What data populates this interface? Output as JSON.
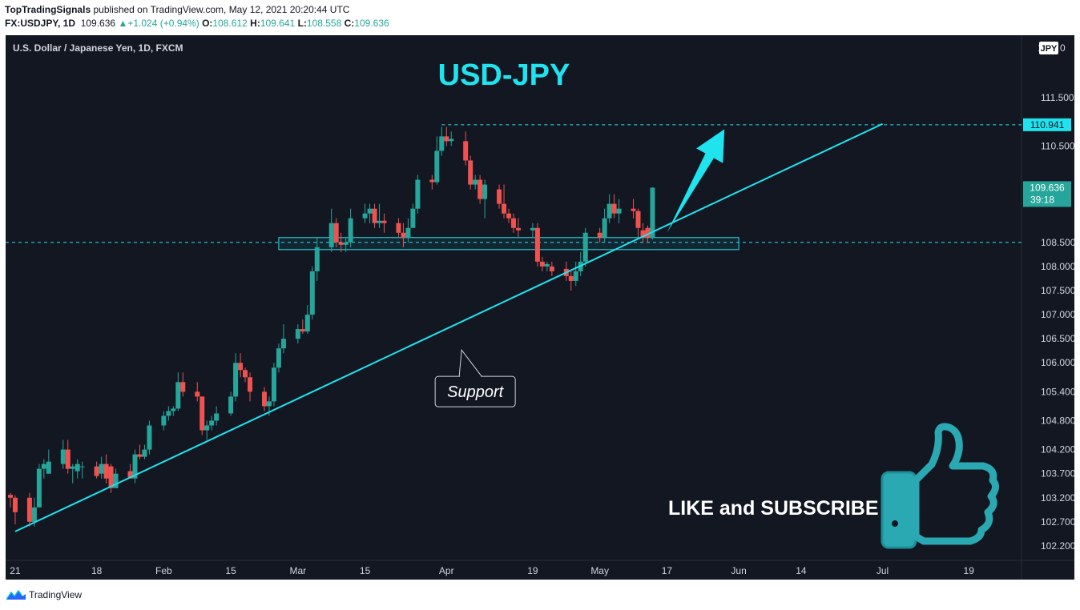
{
  "header": {
    "author": "TopTradingSignals",
    "published_text": "published on TradingView.com, May 12, 2021 20:20:44 UTC"
  },
  "ohlc": {
    "symbol": "FX:USDJPY, 1D",
    "price": "109.636",
    "change": "+1.024 (+0.94%)",
    "o_label": "O:",
    "o": "108.612",
    "h_label": "H:",
    "h": "109.641",
    "l_label": "L:",
    "l": "108.558",
    "c_label": "C:",
    "c": "109.636"
  },
  "footer": {
    "brand": "TradingView"
  },
  "colors": {
    "background": "#131722",
    "up": "#26a69a",
    "down": "#ef5350",
    "cyan": "#1fe3ef",
    "axis_text": "#d1d4dc"
  },
  "chart_data": {
    "type": "candlestick",
    "title": "USD-JPY",
    "instrument": "U.S. Dollar / Japanese Yen, 1D, FXCM",
    "currency_badge": "JPY",
    "y_top_label": "1",
    "y_top_label2": "0",
    "ylim": [
      101.9,
      112.8
    ],
    "y_ticks": [
      {
        "value": 111.5,
        "label": "111.500"
      },
      {
        "value": 110.5,
        "label": "110.500"
      },
      {
        "value": 108.5,
        "label": "108.500"
      },
      {
        "value": 108.0,
        "label": "108.000"
      },
      {
        "value": 107.5,
        "label": "107.500"
      },
      {
        "value": 107.0,
        "label": "107.000"
      },
      {
        "value": 106.5,
        "label": "106.500"
      },
      {
        "value": 106.0,
        "label": "106.000"
      },
      {
        "value": 105.4,
        "label": "105.400"
      },
      {
        "value": 104.8,
        "label": "104.800"
      },
      {
        "value": 104.2,
        "label": "104.200"
      },
      {
        "value": 103.7,
        "label": "103.700"
      },
      {
        "value": 103.2,
        "label": "103.200"
      },
      {
        "value": 102.7,
        "label": "102.700"
      },
      {
        "value": 102.2,
        "label": "102.200"
      }
    ],
    "x_ticks": [
      {
        "date": "2021-01-01",
        "label": "21"
      },
      {
        "date": "2021-01-18",
        "label": "18"
      },
      {
        "date": "2021-02-01",
        "label": "Feb"
      },
      {
        "date": "2021-02-15",
        "label": "15"
      },
      {
        "date": "2021-03-01",
        "label": "Mar"
      },
      {
        "date": "2021-03-15",
        "label": "15"
      },
      {
        "date": "2021-04-01",
        "label": "Apr"
      },
      {
        "date": "2021-04-19",
        "label": "19"
      },
      {
        "date": "2021-05-03",
        "label": "May"
      },
      {
        "date": "2021-05-17",
        "label": "17"
      },
      {
        "date": "2021-06-01",
        "label": "Jun"
      },
      {
        "date": "2021-06-14",
        "label": "14"
      },
      {
        "date": "2021-07-01",
        "label": "Jul"
      },
      {
        "date": "2021-07-19",
        "label": "19"
      }
    ],
    "xlim": [
      "2020-12-30",
      "2021-07-30"
    ],
    "candles": [
      {
        "d": "2020-12-31",
        "o": 103.26,
        "h": 103.3,
        "l": 103.0,
        "c": 103.2
      },
      {
        "d": "2021-01-01",
        "o": 103.2,
        "h": 103.25,
        "l": 102.65,
        "c": 102.9
      },
      {
        "d": "2021-01-04",
        "o": 103.2,
        "h": 103.3,
        "l": 102.6,
        "c": 102.7
      },
      {
        "d": "2021-01-05",
        "o": 102.7,
        "h": 103.2,
        "l": 102.6,
        "c": 103.0
      },
      {
        "d": "2021-01-06",
        "o": 103.0,
        "h": 103.9,
        "l": 103.0,
        "c": 103.8
      },
      {
        "d": "2021-01-07",
        "o": 103.8,
        "h": 104.0,
        "l": 103.6,
        "c": 103.9
      },
      {
        "d": "2021-01-08",
        "o": 103.7,
        "h": 104.2,
        "l": 103.7,
        "c": 103.95
      },
      {
        "d": "2021-01-11",
        "o": 103.9,
        "h": 104.4,
        "l": 103.8,
        "c": 104.2
      },
      {
        "d": "2021-01-12",
        "o": 104.2,
        "h": 104.4,
        "l": 103.7,
        "c": 103.8
      },
      {
        "d": "2021-01-13",
        "o": 103.8,
        "h": 103.9,
        "l": 103.5,
        "c": 103.85
      },
      {
        "d": "2021-01-14",
        "o": 103.75,
        "h": 104.0,
        "l": 103.6,
        "c": 103.9
      },
      {
        "d": "2021-01-15",
        "o": 103.85,
        "h": 103.95,
        "l": 103.6,
        "c": 103.85
      },
      {
        "d": "2021-01-18",
        "o": 103.85,
        "h": 103.95,
        "l": 103.6,
        "c": 103.65
      },
      {
        "d": "2021-01-19",
        "o": 103.7,
        "h": 104.05,
        "l": 103.6,
        "c": 103.9
      },
      {
        "d": "2021-01-20",
        "o": 103.9,
        "h": 104.1,
        "l": 103.5,
        "c": 103.6
      },
      {
        "d": "2021-01-21",
        "o": 103.85,
        "h": 103.9,
        "l": 103.3,
        "c": 103.4
      },
      {
        "d": "2021-01-22",
        "o": 103.4,
        "h": 103.8,
        "l": 103.4,
        "c": 103.7
      },
      {
        "d": "2021-01-25",
        "o": 103.75,
        "h": 103.9,
        "l": 103.6,
        "c": 103.6
      },
      {
        "d": "2021-01-26",
        "o": 103.6,
        "h": 104.2,
        "l": 103.5,
        "c": 104.1
      },
      {
        "d": "2021-01-27",
        "o": 104.1,
        "h": 104.3,
        "l": 104.0,
        "c": 104.05
      },
      {
        "d": "2021-01-28",
        "o": 104.05,
        "h": 104.3,
        "l": 104.0,
        "c": 104.2
      },
      {
        "d": "2021-01-29",
        "o": 104.2,
        "h": 104.8,
        "l": 104.1,
        "c": 104.7
      },
      {
        "d": "2021-02-01",
        "o": 104.7,
        "h": 105.0,
        "l": 104.6,
        "c": 104.9
      },
      {
        "d": "2021-02-02",
        "o": 104.9,
        "h": 105.1,
        "l": 104.8,
        "c": 105.0
      },
      {
        "d": "2021-02-03",
        "o": 105.0,
        "h": 105.1,
        "l": 104.9,
        "c": 105.05
      },
      {
        "d": "2021-02-04",
        "o": 105.05,
        "h": 105.8,
        "l": 105.0,
        "c": 105.6
      },
      {
        "d": "2021-02-05",
        "o": 105.6,
        "h": 105.8,
        "l": 105.3,
        "c": 105.4
      },
      {
        "d": "2021-02-08",
        "o": 105.4,
        "h": 105.6,
        "l": 105.2,
        "c": 105.3
      },
      {
        "d": "2021-02-09",
        "o": 105.3,
        "h": 105.3,
        "l": 104.5,
        "c": 104.6
      },
      {
        "d": "2021-02-10",
        "o": 104.6,
        "h": 104.8,
        "l": 104.4,
        "c": 104.7
      },
      {
        "d": "2021-02-11",
        "o": 104.7,
        "h": 104.9,
        "l": 104.6,
        "c": 104.8
      },
      {
        "d": "2021-02-12",
        "o": 104.8,
        "h": 105.1,
        "l": 104.7,
        "c": 104.95
      },
      {
        "d": "2021-02-15",
        "o": 104.95,
        "h": 105.4,
        "l": 104.9,
        "c": 105.3
      },
      {
        "d": "2021-02-16",
        "o": 105.3,
        "h": 106.2,
        "l": 105.2,
        "c": 106.0
      },
      {
        "d": "2021-02-17",
        "o": 106.0,
        "h": 106.2,
        "l": 105.7,
        "c": 105.85
      },
      {
        "d": "2021-02-18",
        "o": 105.85,
        "h": 105.9,
        "l": 105.6,
        "c": 105.7
      },
      {
        "d": "2021-02-19",
        "o": 105.7,
        "h": 105.8,
        "l": 105.2,
        "c": 105.4
      },
      {
        "d": "2021-02-22",
        "o": 105.4,
        "h": 105.5,
        "l": 105.0,
        "c": 105.1
      },
      {
        "d": "2021-02-23",
        "o": 105.1,
        "h": 105.3,
        "l": 104.9,
        "c": 105.2
      },
      {
        "d": "2021-02-24",
        "o": 105.2,
        "h": 106.0,
        "l": 105.1,
        "c": 105.9
      },
      {
        "d": "2021-02-25",
        "o": 105.9,
        "h": 106.4,
        "l": 105.8,
        "c": 106.3
      },
      {
        "d": "2021-02-26",
        "o": 106.3,
        "h": 106.8,
        "l": 106.2,
        "c": 106.5
      },
      {
        "d": "2021-03-01",
        "o": 106.5,
        "h": 106.8,
        "l": 106.4,
        "c": 106.7
      },
      {
        "d": "2021-03-02",
        "o": 106.7,
        "h": 106.9,
        "l": 106.6,
        "c": 106.65
      },
      {
        "d": "2021-03-03",
        "o": 106.65,
        "h": 107.2,
        "l": 106.6,
        "c": 107.0
      },
      {
        "d": "2021-03-04",
        "o": 107.0,
        "h": 108.0,
        "l": 106.9,
        "c": 107.9
      },
      {
        "d": "2021-03-05",
        "o": 107.9,
        "h": 108.6,
        "l": 107.7,
        "c": 108.4
      },
      {
        "d": "2021-03-08",
        "o": 108.4,
        "h": 109.2,
        "l": 108.3,
        "c": 108.9
      },
      {
        "d": "2021-03-09",
        "o": 108.9,
        "h": 109.0,
        "l": 108.4,
        "c": 108.5
      },
      {
        "d": "2021-03-10",
        "o": 108.5,
        "h": 108.7,
        "l": 108.3,
        "c": 108.45
      },
      {
        "d": "2021-03-11",
        "o": 108.45,
        "h": 108.6,
        "l": 108.3,
        "c": 108.5
      },
      {
        "d": "2021-03-12",
        "o": 108.5,
        "h": 109.2,
        "l": 108.4,
        "c": 109.0
      },
      {
        "d": "2021-03-15",
        "o": 109.0,
        "h": 109.3,
        "l": 108.9,
        "c": 109.1
      },
      {
        "d": "2021-03-16",
        "o": 109.1,
        "h": 109.3,
        "l": 108.9,
        "c": 109.2
      },
      {
        "d": "2021-03-17",
        "o": 109.2,
        "h": 109.3,
        "l": 108.8,
        "c": 108.9
      },
      {
        "d": "2021-03-18",
        "o": 108.9,
        "h": 109.3,
        "l": 108.8,
        "c": 108.95
      },
      {
        "d": "2021-03-19",
        "o": 108.95,
        "h": 109.1,
        "l": 108.7,
        "c": 108.9
      },
      {
        "d": "2021-03-22",
        "o": 108.9,
        "h": 109.0,
        "l": 108.6,
        "c": 108.7
      },
      {
        "d": "2021-03-23",
        "o": 108.7,
        "h": 108.9,
        "l": 108.4,
        "c": 108.6
      },
      {
        "d": "2021-03-24",
        "o": 108.6,
        "h": 109.0,
        "l": 108.5,
        "c": 108.8
      },
      {
        "d": "2021-03-25",
        "o": 108.8,
        "h": 109.3,
        "l": 108.8,
        "c": 109.2
      },
      {
        "d": "2021-03-26",
        "o": 109.2,
        "h": 109.9,
        "l": 109.1,
        "c": 109.8
      },
      {
        "d": "2021-03-29",
        "o": 109.8,
        "h": 109.9,
        "l": 109.6,
        "c": 109.75
      },
      {
        "d": "2021-03-30",
        "o": 109.75,
        "h": 110.7,
        "l": 109.7,
        "c": 110.4
      },
      {
        "d": "2021-03-31",
        "o": 110.4,
        "h": 110.9,
        "l": 110.3,
        "c": 110.7
      },
      {
        "d": "2021-04-01",
        "o": 110.7,
        "h": 110.9,
        "l": 110.5,
        "c": 110.6
      },
      {
        "d": "2021-04-02",
        "o": 110.6,
        "h": 110.8,
        "l": 110.5,
        "c": 110.65
      },
      {
        "d": "2021-04-05",
        "o": 110.6,
        "h": 110.8,
        "l": 110.1,
        "c": 110.2
      },
      {
        "d": "2021-04-06",
        "o": 110.2,
        "h": 110.3,
        "l": 109.6,
        "c": 109.7
      },
      {
        "d": "2021-04-07",
        "o": 109.7,
        "h": 109.9,
        "l": 109.6,
        "c": 109.8
      },
      {
        "d": "2021-04-08",
        "o": 109.8,
        "h": 109.9,
        "l": 109.3,
        "c": 109.4
      },
      {
        "d": "2021-04-09",
        "o": 109.4,
        "h": 109.8,
        "l": 109.0,
        "c": 109.7
      },
      {
        "d": "2021-04-12",
        "o": 109.6,
        "h": 109.7,
        "l": 109.2,
        "c": 109.3
      },
      {
        "d": "2021-04-13",
        "o": 109.3,
        "h": 109.7,
        "l": 109.0,
        "c": 109.1
      },
      {
        "d": "2021-04-14",
        "o": 109.1,
        "h": 109.2,
        "l": 108.9,
        "c": 109.0
      },
      {
        "d": "2021-04-15",
        "o": 109.0,
        "h": 109.1,
        "l": 108.7,
        "c": 108.8
      },
      {
        "d": "2021-04-16",
        "o": 108.8,
        "h": 109.0,
        "l": 108.6,
        "c": 108.75
      },
      {
        "d": "2021-04-19",
        "o": 108.75,
        "h": 108.9,
        "l": 108.6,
        "c": 108.8
      },
      {
        "d": "2021-04-20",
        "o": 108.8,
        "h": 108.9,
        "l": 108.0,
        "c": 108.1
      },
      {
        "d": "2021-04-21",
        "o": 108.1,
        "h": 108.2,
        "l": 107.9,
        "c": 108.0
      },
      {
        "d": "2021-04-22",
        "o": 108.0,
        "h": 108.1,
        "l": 107.9,
        "c": 108.05
      },
      {
        "d": "2021-04-23",
        "o": 108.0,
        "h": 108.1,
        "l": 107.8,
        "c": 107.9
      },
      {
        "d": "2021-04-26",
        "o": 107.95,
        "h": 108.1,
        "l": 107.7,
        "c": 107.8
      },
      {
        "d": "2021-04-27",
        "o": 107.8,
        "h": 107.9,
        "l": 107.5,
        "c": 107.7
      },
      {
        "d": "2021-04-28",
        "o": 107.7,
        "h": 108.1,
        "l": 107.6,
        "c": 107.9
      },
      {
        "d": "2021-04-29",
        "o": 107.9,
        "h": 108.3,
        "l": 107.8,
        "c": 108.1
      },
      {
        "d": "2021-04-30",
        "o": 108.1,
        "h": 108.8,
        "l": 108.0,
        "c": 108.7
      },
      {
        "d": "2021-05-03",
        "o": 108.7,
        "h": 108.8,
        "l": 108.5,
        "c": 108.6
      },
      {
        "d": "2021-05-04",
        "o": 108.6,
        "h": 109.2,
        "l": 108.5,
        "c": 109.0
      },
      {
        "d": "2021-05-05",
        "o": 109.0,
        "h": 109.5,
        "l": 108.9,
        "c": 109.3
      },
      {
        "d": "2021-05-06",
        "o": 109.3,
        "h": 109.5,
        "l": 109.0,
        "c": 109.1
      },
      {
        "d": "2021-05-07",
        "o": 109.1,
        "h": 109.4,
        "l": 108.9,
        "c": 109.2
      },
      {
        "d": "2021-05-10",
        "o": 109.2,
        "h": 109.4,
        "l": 109.0,
        "c": 109.15
      },
      {
        "d": "2021-05-11",
        "o": 109.15,
        "h": 109.2,
        "l": 108.6,
        "c": 108.8
      },
      {
        "d": "2021-05-12",
        "o": 108.75,
        "h": 108.9,
        "l": 108.5,
        "c": 108.6
      },
      {
        "d": "2021-05-13",
        "o": 108.8,
        "h": 108.85,
        "l": 108.5,
        "c": 108.6
      },
      {
        "d": "2021-05-14",
        "o": 108.612,
        "h": 109.641,
        "l": 108.558,
        "c": 109.636
      }
    ],
    "resistance_level": {
      "value": 110.941,
      "label": "110.941",
      "from": "2021-03-31"
    },
    "support_level": {
      "value": 108.5
    },
    "last_price": {
      "value": 109.636,
      "label": "109.636",
      "countdown": "39:18"
    },
    "support_zone": {
      "from": "2021-02-25",
      "to": "2021-06-01",
      "low": 108.35,
      "high": 108.6
    },
    "trendline": {
      "x1": "2021-01-01",
      "y1": 102.5,
      "x2": "2021-07-01",
      "y2": 110.96
    },
    "arrow": {
      "x1": "2021-05-17",
      "y1": 108.7,
      "x2": "2021-05-29",
      "y2": 110.85
    },
    "annotation": {
      "text": "Support",
      "date": "2021-04-07",
      "value": 106.55
    },
    "promo_text": "LIKE and SUBSCRIBE"
  }
}
